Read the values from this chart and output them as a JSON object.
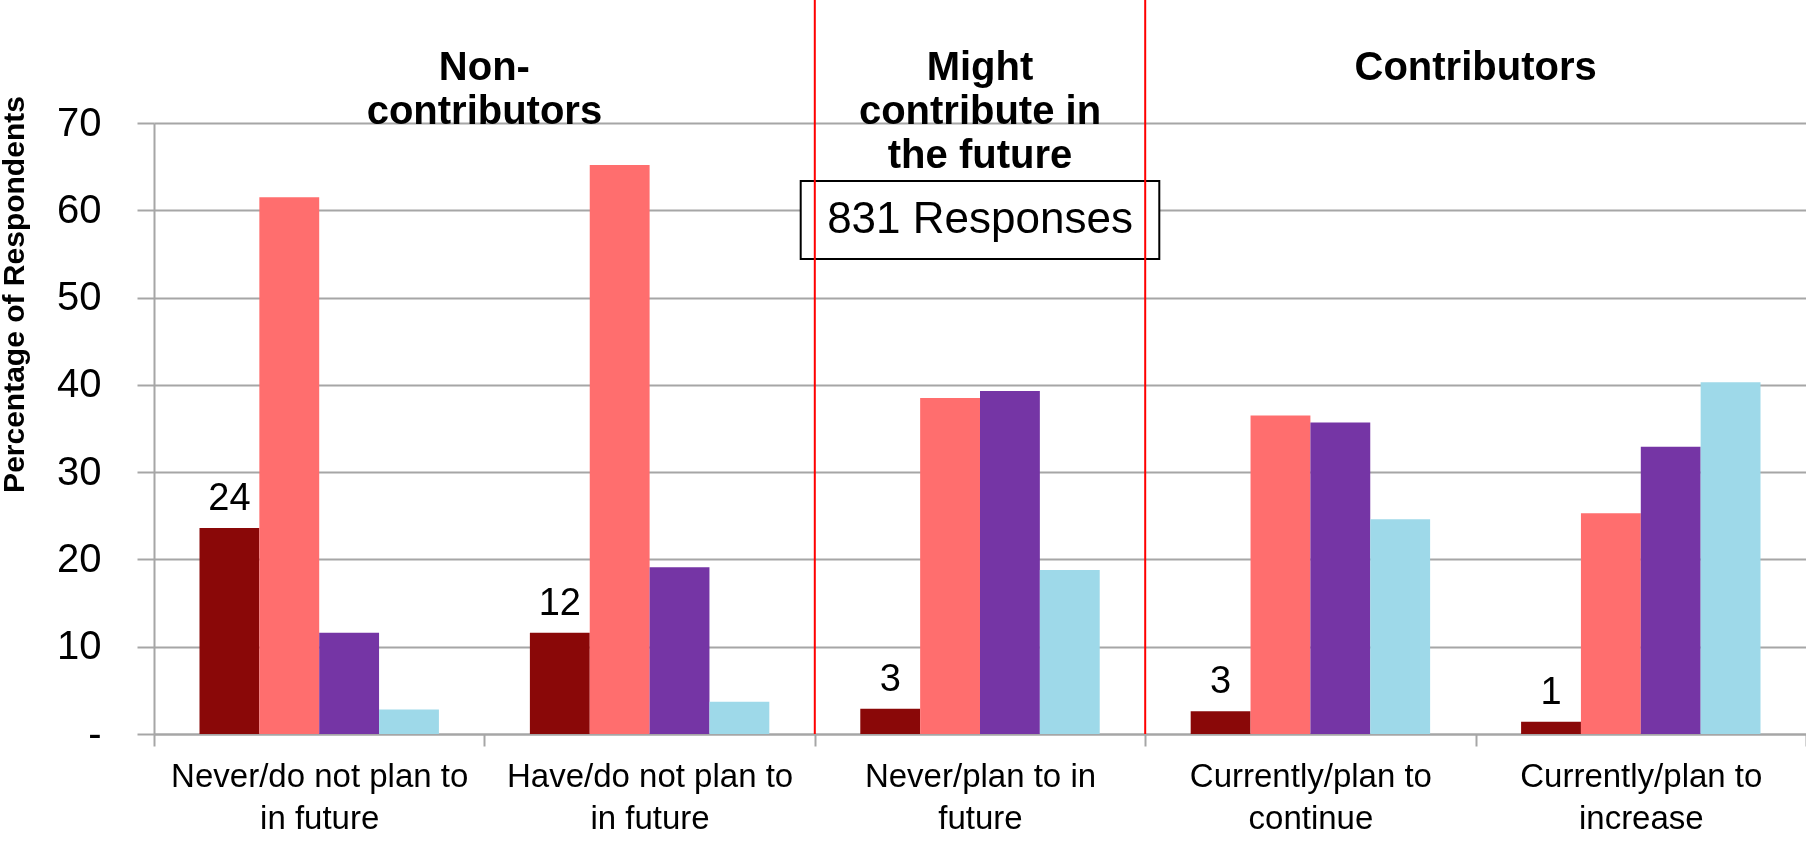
{
  "chart_data": {
    "type": "bar",
    "ylabel": "Percentage of Respondents",
    "categories": [
      "Never/do not plan to in future",
      "Have/do not plan to in future",
      "Never/plan to in future",
      "Currently/plan to continue",
      "Currently/plan to increase"
    ],
    "series": [
      {
        "color": "#8a0808",
        "values": [
          23.6,
          11.6,
          2.9,
          2.6,
          1.4
        ],
        "value_labels": [
          "24",
          "12",
          "3",
          "3",
          "1"
        ]
      },
      {
        "color": "#ff6e6e",
        "values": [
          61.5,
          65.2,
          38.5,
          36.5,
          25.3
        ]
      },
      {
        "color": "#7535a5",
        "values": [
          11.6,
          19.1,
          39.3,
          35.7,
          32.9
        ]
      },
      {
        "color": "#9ed9e9",
        "values": [
          2.8,
          3.7,
          18.8,
          24.6,
          40.3
        ]
      }
    ],
    "ylim": [
      0,
      70
    ],
    "yticks": [
      {
        "value": 0,
        "label": "-"
      },
      10,
      20,
      30,
      40,
      50,
      60,
      70
    ],
    "grid": "y",
    "annotations": [
      "Non-contributors",
      "Might contribute in the future",
      "Contributors",
      "831 Responses"
    ]
  }
}
